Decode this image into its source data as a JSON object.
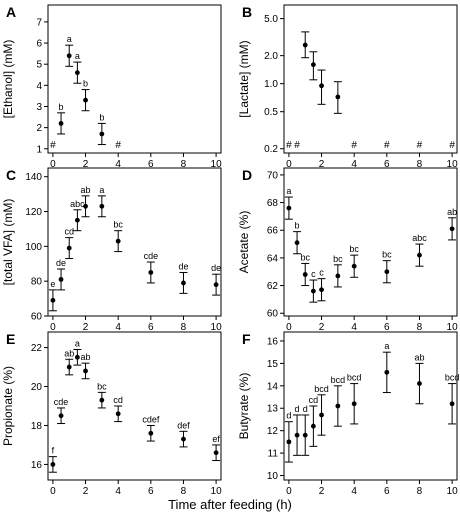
{
  "xlabel": "Time after feeding (h)",
  "chart_data": [
    {
      "panel": "A",
      "type": "scatter",
      "ylabel": "[Ethanol] (mM)",
      "scale": "linear",
      "xlim": [
        -0.3,
        10.3
      ],
      "ylim": [
        0.8,
        7.8
      ],
      "xticks": [
        0,
        2,
        4,
        6,
        8,
        10
      ],
      "yticks": [
        1,
        2,
        3,
        4,
        5,
        6,
        7
      ],
      "points": [
        {
          "x": 0.5,
          "y": 2.2,
          "lo": 1.7,
          "hi": 2.7,
          "sig": "b"
        },
        {
          "x": 1.0,
          "y": 5.4,
          "lo": 4.9,
          "hi": 5.9,
          "sig": "a"
        },
        {
          "x": 1.5,
          "y": 4.6,
          "lo": 4.1,
          "hi": 5.1,
          "sig": "a"
        },
        {
          "x": 2.0,
          "y": 3.3,
          "lo": 2.8,
          "hi": 3.8,
          "sig": "b"
        },
        {
          "x": 3.0,
          "y": 1.7,
          "lo": 1.2,
          "hi": 2.2,
          "sig": "b"
        }
      ],
      "hash_x": [
        0,
        4
      ]
    },
    {
      "panel": "B",
      "type": "scatter",
      "ylabel": "[Lactate] (mM)",
      "scale": "log",
      "xlim": [
        -0.3,
        10.3
      ],
      "ylim": [
        0.18,
        7.0
      ],
      "xticks": [
        0,
        2,
        4,
        6,
        8,
        10
      ],
      "yticks": [
        0.2,
        0.5,
        1.0,
        2.0,
        5.0
      ],
      "ytick_labels": [
        "0.2",
        "0.5",
        "1.0",
        "2.0",
        "5.0"
      ],
      "points": [
        {
          "x": 1.0,
          "y": 2.6,
          "lo": 1.9,
          "hi": 3.6
        },
        {
          "x": 1.5,
          "y": 1.6,
          "lo": 1.1,
          "hi": 2.2
        },
        {
          "x": 2.0,
          "y": 0.95,
          "lo": 0.6,
          "hi": 1.4
        },
        {
          "x": 3.0,
          "y": 0.72,
          "lo": 0.48,
          "hi": 1.05
        }
      ],
      "hash_x": [
        0,
        0.5,
        4,
        6,
        8,
        10
      ]
    },
    {
      "panel": "C",
      "type": "scatter",
      "ylabel": "[total VFA] (mM)",
      "scale": "linear",
      "xlim": [
        -0.3,
        10.3
      ],
      "ylim": [
        60,
        145
      ],
      "xticks": [
        0,
        2,
        4,
        6,
        8,
        10
      ],
      "yticks": [
        60,
        80,
        100,
        120,
        140
      ],
      "points": [
        {
          "x": 0,
          "y": 69,
          "lo": 63,
          "hi": 75,
          "sig": "e"
        },
        {
          "x": 0.5,
          "y": 81,
          "lo": 75,
          "hi": 87,
          "sig": "de"
        },
        {
          "x": 1.0,
          "y": 99,
          "lo": 93,
          "hi": 105,
          "sig": "cd"
        },
        {
          "x": 1.5,
          "y": 115,
          "lo": 109,
          "hi": 121,
          "sig": "abc"
        },
        {
          "x": 2.0,
          "y": 123,
          "lo": 117,
          "hi": 129,
          "sig": "ab"
        },
        {
          "x": 3.0,
          "y": 123,
          "lo": 117,
          "hi": 129,
          "sig": "a"
        },
        {
          "x": 4.0,
          "y": 103,
          "lo": 97,
          "hi": 109,
          "sig": "bc"
        },
        {
          "x": 6.0,
          "y": 85,
          "lo": 79,
          "hi": 91,
          "sig": "cde"
        },
        {
          "x": 8.0,
          "y": 79,
          "lo": 73,
          "hi": 85,
          "sig": "de"
        },
        {
          "x": 10.0,
          "y": 78,
          "lo": 72,
          "hi": 84,
          "sig": "de"
        }
      ]
    },
    {
      "panel": "D",
      "type": "scatter",
      "ylabel": "Acetate (%)",
      "scale": "linear",
      "xlim": [
        -0.3,
        10.3
      ],
      "ylim": [
        59.8,
        70.5
      ],
      "xticks": [
        0,
        2,
        4,
        6,
        8,
        10
      ],
      "yticks": [
        60,
        62,
        64,
        66,
        68,
        70
      ],
      "points": [
        {
          "x": 0,
          "y": 67.6,
          "lo": 66.8,
          "hi": 68.4,
          "sig": "a"
        },
        {
          "x": 0.5,
          "y": 65.1,
          "lo": 64.3,
          "hi": 65.9,
          "sig": "b"
        },
        {
          "x": 1.0,
          "y": 62.8,
          "lo": 62.0,
          "hi": 63.6,
          "sig": "bc"
        },
        {
          "x": 1.5,
          "y": 61.6,
          "lo": 60.8,
          "hi": 62.4,
          "sig": "c"
        },
        {
          "x": 2.0,
          "y": 61.7,
          "lo": 60.9,
          "hi": 62.5,
          "sig": "c"
        },
        {
          "x": 3.0,
          "y": 62.7,
          "lo": 61.9,
          "hi": 63.5,
          "sig": "bc"
        },
        {
          "x": 4.0,
          "y": 63.4,
          "lo": 62.6,
          "hi": 64.2,
          "sig": "bc"
        },
        {
          "x": 6.0,
          "y": 63.0,
          "lo": 62.2,
          "hi": 63.8,
          "sig": "bc"
        },
        {
          "x": 8.0,
          "y": 64.2,
          "lo": 63.4,
          "hi": 65.0,
          "sig": "abc"
        },
        {
          "x": 10.0,
          "y": 66.1,
          "lo": 65.3,
          "hi": 66.9,
          "sig": "ab"
        }
      ]
    },
    {
      "panel": "E",
      "type": "scatter",
      "ylabel": "Propionate (%)",
      "scale": "linear",
      "xlim": [
        -0.3,
        10.3
      ],
      "ylim": [
        15.2,
        22.8
      ],
      "xticks": [
        0,
        2,
        4,
        6,
        8,
        10
      ],
      "yticks": [
        16,
        18,
        20,
        22
      ],
      "points": [
        {
          "x": 0,
          "y": 16.0,
          "lo": 15.6,
          "hi": 16.4,
          "sig": "f"
        },
        {
          "x": 0.5,
          "y": 18.5,
          "lo": 18.1,
          "hi": 18.9,
          "sig": "cde"
        },
        {
          "x": 1.0,
          "y": 21.0,
          "lo": 20.6,
          "hi": 21.4,
          "sig": "ab"
        },
        {
          "x": 1.5,
          "y": 21.5,
          "lo": 21.1,
          "hi": 21.9,
          "sig": "a"
        },
        {
          "x": 2.0,
          "y": 20.8,
          "lo": 20.4,
          "hi": 21.2,
          "sig": "ab"
        },
        {
          "x": 3.0,
          "y": 19.3,
          "lo": 18.9,
          "hi": 19.7,
          "sig": "bc"
        },
        {
          "x": 4.0,
          "y": 18.6,
          "lo": 18.2,
          "hi": 19.0,
          "sig": "cd"
        },
        {
          "x": 6.0,
          "y": 17.6,
          "lo": 17.2,
          "hi": 18.0,
          "sig": "cdef"
        },
        {
          "x": 8.0,
          "y": 17.3,
          "lo": 16.9,
          "hi": 17.7,
          "sig": "def"
        },
        {
          "x": 10.0,
          "y": 16.6,
          "lo": 16.2,
          "hi": 17.0,
          "sig": "ef"
        }
      ]
    },
    {
      "panel": "F",
      "type": "scatter",
      "ylabel": "Butyrate (%)",
      "scale": "linear",
      "xlim": [
        -0.3,
        10.3
      ],
      "ylim": [
        9.8,
        16.4
      ],
      "xticks": [
        0,
        2,
        4,
        6,
        8,
        10
      ],
      "yticks": [
        10,
        11,
        12,
        13,
        14,
        15,
        16
      ],
      "points": [
        {
          "x": 0,
          "y": 11.5,
          "lo": 10.6,
          "hi": 12.4,
          "sig": "d"
        },
        {
          "x": 0.5,
          "y": 11.8,
          "lo": 10.9,
          "hi": 12.7,
          "sig": "d"
        },
        {
          "x": 1.0,
          "y": 11.8,
          "lo": 10.9,
          "hi": 12.7,
          "sig": "d"
        },
        {
          "x": 1.5,
          "y": 12.2,
          "lo": 11.3,
          "hi": 13.1,
          "sig": "cd"
        },
        {
          "x": 2.0,
          "y": 12.7,
          "lo": 11.8,
          "hi": 13.6,
          "sig": "bcd"
        },
        {
          "x": 3.0,
          "y": 13.1,
          "lo": 12.2,
          "hi": 14.0,
          "sig": "bcd"
        },
        {
          "x": 4.0,
          "y": 13.2,
          "lo": 12.3,
          "hi": 14.1,
          "sig": "bcd"
        },
        {
          "x": 6.0,
          "y": 14.6,
          "lo": 13.7,
          "hi": 15.5,
          "sig": "a"
        },
        {
          "x": 8.0,
          "y": 14.1,
          "lo": 13.2,
          "hi": 15.0,
          "sig": "ab"
        },
        {
          "x": 10.0,
          "y": 13.2,
          "lo": 12.3,
          "hi": 14.1,
          "sig": "bcd"
        }
      ]
    }
  ]
}
